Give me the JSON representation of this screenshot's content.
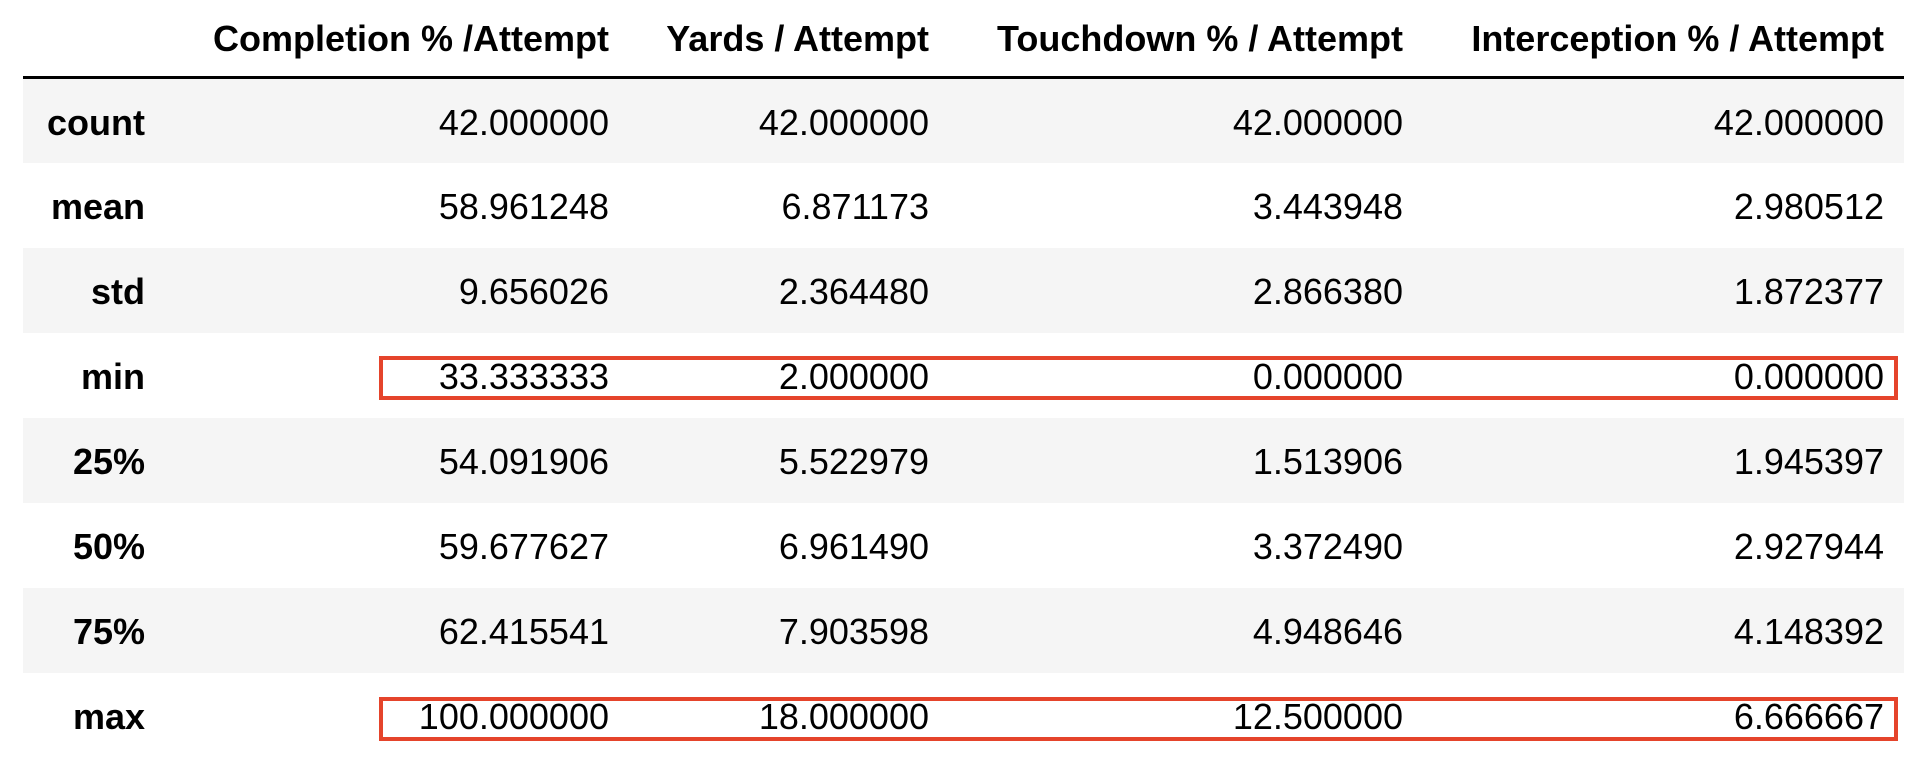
{
  "table": {
    "columns": [
      "",
      "Completion % /Attempt",
      "Yards / Attempt",
      "Touchdown % / Attempt",
      "Interception % / Attempt"
    ],
    "rows": [
      {
        "label": "count",
        "values": [
          "42.000000",
          "42.000000",
          "42.000000",
          "42.000000"
        ]
      },
      {
        "label": "mean",
        "values": [
          "58.961248",
          "6.871173",
          "3.443948",
          "2.980512"
        ]
      },
      {
        "label": "std",
        "values": [
          "9.656026",
          "2.364480",
          "2.866380",
          "1.872377"
        ]
      },
      {
        "label": "min",
        "values": [
          "33.333333",
          "2.000000",
          "0.000000",
          "0.000000"
        ]
      },
      {
        "label": "25%",
        "values": [
          "54.091906",
          "5.522979",
          "1.513906",
          "1.945397"
        ]
      },
      {
        "label": "50%",
        "values": [
          "59.677627",
          "6.961490",
          "3.372490",
          "2.927944"
        ]
      },
      {
        "label": "75%",
        "values": [
          "62.415541",
          "7.903598",
          "4.948646",
          "4.148392"
        ]
      },
      {
        "label": "max",
        "values": [
          "100.000000",
          "18.000000",
          "12.500000",
          "6.666667"
        ]
      }
    ]
  },
  "highlight": {
    "color": "#e5442b",
    "rows": [
      "min",
      "max"
    ]
  },
  "colors": {
    "stripe": "#f5f5f5",
    "background": "#ffffff",
    "text": "#000000"
  }
}
